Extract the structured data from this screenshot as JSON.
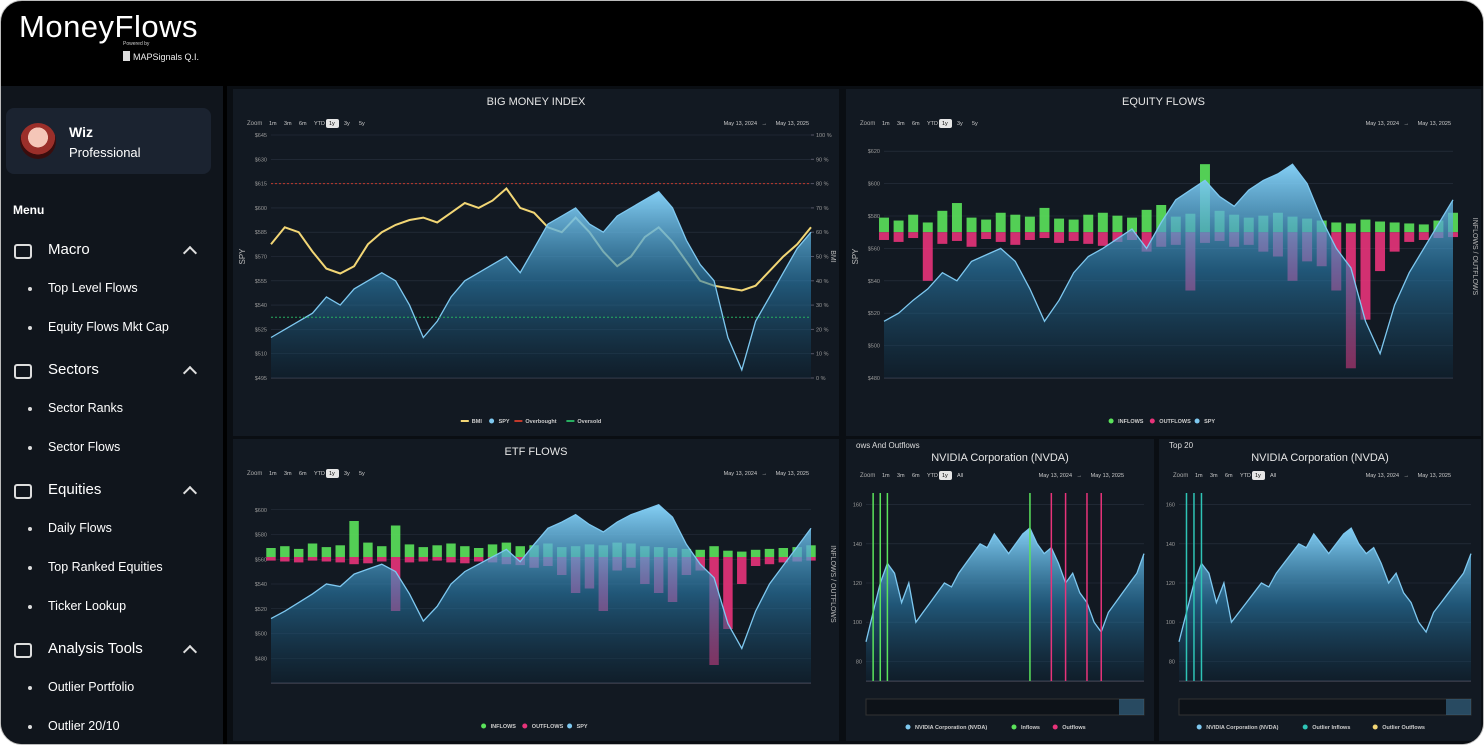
{
  "header": {
    "brand": "MoneyFlows",
    "powered": "Powered by",
    "company": "MAPSignals Q.I."
  },
  "sidebar": {
    "user": {
      "name": "Wiz",
      "plan": "Professional"
    },
    "menu_title": "Menu",
    "sections": [
      {
        "label": "Macro",
        "items": [
          "Top Level Flows",
          "Equity Flows Mkt Cap"
        ]
      },
      {
        "label": "Sectors",
        "items": [
          "Sector Ranks",
          "Sector Flows"
        ]
      },
      {
        "label": "Equities",
        "items": [
          "Daily Flows",
          "Top Ranked Equities",
          "Ticker Lookup"
        ]
      },
      {
        "label": "Analysis Tools",
        "items": [
          "Outlier Portfolio",
          "Outlier 20/10"
        ]
      }
    ]
  },
  "panels": [
    {
      "title": "BIG MONEY INDEX",
      "zoom_label": "Zoom",
      "zoom": [
        "1m",
        "3m",
        "6m",
        "YTD",
        "1y",
        "3y",
        "5y"
      ],
      "zoom_active": 4,
      "range_from": "May 13, 2024",
      "range_arrow": "→",
      "range_to": "May 13, 2025",
      "chart": {
        "type": "line",
        "ylabel": "SPY",
        "y2label": "BMI",
        "ylim": [
          495,
          645
        ],
        "yticks": [
          {
            "value": 495,
            "label": "$495"
          },
          {
            "value": 510,
            "label": "$510"
          },
          {
            "value": 525,
            "label": "$525"
          },
          {
            "value": 540,
            "label": "$540"
          },
          {
            "value": 555,
            "label": "$555"
          },
          {
            "value": 570,
            "label": "$570"
          },
          {
            "value": 585,
            "label": "$585"
          },
          {
            "value": 600,
            "label": "$600"
          },
          {
            "value": 615,
            "label": "$615"
          },
          {
            "value": 630,
            "label": "$630"
          },
          {
            "value": 645,
            "label": "$645"
          }
        ],
        "y2lim": [
          0,
          100
        ],
        "y2ticks": [
          {
            "value": 0,
            "label": "0 %"
          },
          {
            "value": 10,
            "label": "10 %"
          },
          {
            "value": 20,
            "label": "20 %"
          },
          {
            "value": 30,
            "label": "30 %"
          },
          {
            "value": 40,
            "label": "40 %"
          },
          {
            "value": 50,
            "label": "50 %"
          },
          {
            "value": 60,
            "label": "60 %"
          },
          {
            "value": 70,
            "label": "70 %"
          },
          {
            "value": 80,
            "label": "80 %"
          },
          {
            "value": 90,
            "label": "90 %"
          },
          {
            "value": 100,
            "label": "100 %"
          }
        ],
        "series": [
          {
            "name": "BMI",
            "color": "#f2d675",
            "kind": "line",
            "axis": "y2",
            "values": [
              55,
              62,
              60,
              52,
              45,
              43,
              46,
              55,
              60,
              63,
              65,
              66,
              64,
              68,
              72,
              70,
              73,
              78,
              70,
              68,
              62,
              60,
              66,
              60,
              52,
              46,
              50,
              58,
              62,
              56,
              48,
              40,
              38,
              37,
              36,
              38,
              44,
              50,
              55,
              62
            ]
          },
          {
            "name": "SPY",
            "color": "#7ec8f0",
            "kind": "area",
            "values": [
              520,
              525,
              530,
              535,
              545,
              540,
              550,
              555,
              560,
              555,
              540,
              520,
              530,
              545,
              555,
              560,
              565,
              570,
              560,
              575,
              590,
              595,
              600,
              590,
              585,
              595,
              600,
              605,
              610,
              600,
              580,
              565,
              555,
              520,
              500,
              530,
              545,
              560,
              575,
              585
            ]
          },
          {
            "name": "Overbought",
            "color": "#c0392b",
            "kind": "hline",
            "axis": "y2",
            "value": 80
          },
          {
            "name": "Oversold",
            "color": "#27ae60",
            "kind": "hline",
            "axis": "y2",
            "value": 25
          }
        ]
      }
    },
    {
      "title": "EQUITY FLOWS",
      "zoom_label": "Zoom",
      "zoom": [
        "1m",
        "3m",
        "6m",
        "YTD",
        "1y",
        "3y",
        "5y"
      ],
      "zoom_active": 4,
      "range_from": "May 13, 2024",
      "range_arrow": "→",
      "range_to": "May 13, 2025",
      "chart": {
        "type": "combo",
        "ylabel": "SPY",
        "y2label": "INFLOWS / OUTFLOWS",
        "ylim": [
          480,
          630
        ],
        "yticks": [
          {
            "value": 480,
            "label": "$480"
          },
          {
            "value": 500,
            "label": "$500"
          },
          {
            "value": 520,
            "label": "$520"
          },
          {
            "value": 540,
            "label": "$540"
          },
          {
            "value": 560,
            "label": "$560"
          },
          {
            "value": 580,
            "label": "$580"
          },
          {
            "value": 600,
            "label": "$600"
          },
          {
            "value": 620,
            "label": "$620"
          }
        ],
        "y2lim": [
          -1500,
          1000
        ],
        "series": [
          {
            "name": "INFLOWS",
            "color": "#5be35b",
            "kind": "bar",
            "axis": "y2",
            "values": [
              150,
              120,
              180,
              100,
              220,
              300,
              150,
              130,
              200,
              180,
              160,
              250,
              140,
              130,
              180,
              200,
              170,
              150,
              230,
              280,
              160,
              190,
              700,
              220,
              180,
              150,
              170,
              200,
              160,
              140,
              120,
              100,
              90,
              130,
              110,
              100,
              90,
              80,
              120,
              200
            ]
          },
          {
            "name": "OUTFLOWS",
            "color": "#e8337a",
            "kind": "bar",
            "axis": "y2",
            "values": [
              -80,
              -100,
              -60,
              -500,
              -120,
              -90,
              -150,
              -70,
              -100,
              -130,
              -80,
              -60,
              -110,
              -90,
              -120,
              -140,
              -100,
              -80,
              -200,
              -150,
              -130,
              -600,
              -110,
              -90,
              -150,
              -130,
              -200,
              -250,
              -500,
              -300,
              -350,
              -600,
              -1400,
              -900,
              -400,
              -200,
              -100,
              -80,
              -60,
              -50
            ]
          },
          {
            "name": "SPY",
            "color": "#7ec8f0",
            "kind": "area",
            "values": [
              515,
              520,
              528,
              535,
              545,
              540,
              552,
              556,
              560,
              552,
              535,
              515,
              528,
              545,
              555,
              560,
              566,
              572,
              560,
              576,
              590,
              596,
              602,
              592,
              586,
              596,
              602,
              606,
              612,
              600,
              578,
              560,
              548,
              515,
              495,
              525,
              545,
              560,
              575,
              590
            ]
          }
        ]
      }
    },
    {
      "title": "ETF FLOWS",
      "zoom_label": "Zoom",
      "zoom": [
        "1m",
        "3m",
        "6m",
        "YTD",
        "1y",
        "3y",
        "5y"
      ],
      "zoom_active": 4,
      "range_from": "May 13, 2024",
      "range_arrow": "→",
      "range_to": "May 13, 2025",
      "chart": {
        "type": "combo",
        "y2label": "INFLOWS / OUTFLOWS",
        "ylim": [
          460,
          620
        ],
        "yticks": [
          {
            "value": 480,
            "label": "$480"
          },
          {
            "value": 500,
            "label": "$500"
          },
          {
            "value": 520,
            "label": "$520"
          },
          {
            "value": 540,
            "label": "$540"
          },
          {
            "value": 560,
            "label": "$560"
          },
          {
            "value": 580,
            "label": "$580"
          },
          {
            "value": 600,
            "label": "$600"
          }
        ],
        "y2lim": [
          -1400,
          800
        ],
        "series": [
          {
            "name": "INFLOWS",
            "color": "#5be35b",
            "kind": "bar",
            "axis": "y2",
            "values": [
              100,
              120,
              90,
              150,
              110,
              130,
              400,
              160,
              120,
              350,
              140,
              110,
              130,
              150,
              120,
              100,
              140,
              160,
              120,
              130,
              150,
              110,
              120,
              140,
              130,
              160,
              150,
              120,
              110,
              100,
              90,
              80,
              120,
              70,
              60,
              80,
              90,
              100,
              110,
              130
            ]
          },
          {
            "name": "OUTFLOWS",
            "color": "#e8337a",
            "kind": "bar",
            "axis": "y2",
            "values": [
              -40,
              -50,
              -60,
              -40,
              -50,
              -60,
              -80,
              -70,
              -50,
              -600,
              -60,
              -50,
              -40,
              -60,
              -70,
              -50,
              -60,
              -80,
              -90,
              -120,
              -100,
              -200,
              -400,
              -350,
              -600,
              -150,
              -120,
              -300,
              -400,
              -500,
              -200,
              -150,
              -1200,
              -800,
              -300,
              -100,
              -80,
              -60,
              -50,
              -40
            ]
          },
          {
            "name": "SPY",
            "color": "#7ec8f0",
            "kind": "area",
            "values": [
              512,
              518,
              525,
              532,
              540,
              538,
              548,
              552,
              556,
              550,
              532,
              510,
              522,
              540,
              550,
              556,
              562,
              568,
              558,
              572,
              585,
              590,
              596,
              588,
              582,
              590,
              596,
              600,
              604,
              594,
              572,
              556,
              545,
              508,
              488,
              518,
              540,
              555,
              570,
              585
            ]
          }
        ]
      }
    },
    {
      "heading": "ows And Outflows",
      "title": "NVIDIA Corporation (NVDA)",
      "zoom_label": "Zoom",
      "zoom": [
        "1m",
        "3m",
        "6m",
        "YTD",
        "1y",
        "All"
      ],
      "zoom_active": 4,
      "range_from": "May 13, 2024",
      "range_arrow": "→",
      "range_to": "May 13, 2025",
      "chart": {
        "type": "line",
        "ylim": [
          70,
          170
        ],
        "yticks": [
          80,
          100,
          120,
          140,
          160
        ],
        "series": [
          {
            "name": "NVIDIA Corporation (NVDA)",
            "color": "#7ec8f0",
            "kind": "area",
            "values": [
              90,
              105,
              120,
              130,
              125,
              110,
              120,
              100,
              105,
              110,
              115,
              120,
              118,
              125,
              130,
              135,
              140,
              138,
              145,
              140,
              135,
              140,
              145,
              148,
              140,
              135,
              138,
              130,
              120,
              125,
              115,
              110,
              100,
              95,
              105,
              110,
              115,
              120,
              125,
              135
            ]
          },
          {
            "name": "Inflows",
            "color": "#5be35b",
            "kind": "event",
            "x": [
              1,
              2,
              3,
              23
            ]
          },
          {
            "name": "Outflows",
            "color": "#e8337a",
            "kind": "event",
            "x": [
              26,
              28,
              31,
              33
            ]
          }
        ]
      }
    },
    {
      "heading": "Top 20",
      "title": "NVIDIA Corporation (NVDA)",
      "zoom_label": "Zoom",
      "zoom": [
        "1m",
        "3m",
        "6m",
        "YTD",
        "1y",
        "All"
      ],
      "zoom_active": 4,
      "range_from": "May 13, 2024",
      "range_arrow": "→",
      "range_to": "May 13, 2025",
      "chart": {
        "type": "line",
        "ylim": [
          70,
          170
        ],
        "yticks": [
          80,
          100,
          120,
          140,
          160
        ],
        "series": [
          {
            "name": "NVIDIA Corporation (NVDA)",
            "color": "#7ec8f0",
            "kind": "area",
            "values": [
              90,
              105,
              120,
              130,
              125,
              110,
              120,
              100,
              105,
              110,
              115,
              120,
              118,
              125,
              130,
              135,
              140,
              138,
              145,
              140,
              135,
              140,
              145,
              148,
              140,
              135,
              138,
              130,
              120,
              125,
              115,
              110,
              100,
              95,
              105,
              110,
              115,
              120,
              125,
              135
            ]
          },
          {
            "name": "Outlier Inflows",
            "color": "#2ec4b6",
            "kind": "event",
            "x": [
              1,
              2,
              3
            ]
          },
          {
            "name": "Outlier Outflows",
            "color": "#f2d675",
            "kind": "event",
            "x": []
          }
        ]
      }
    }
  ]
}
